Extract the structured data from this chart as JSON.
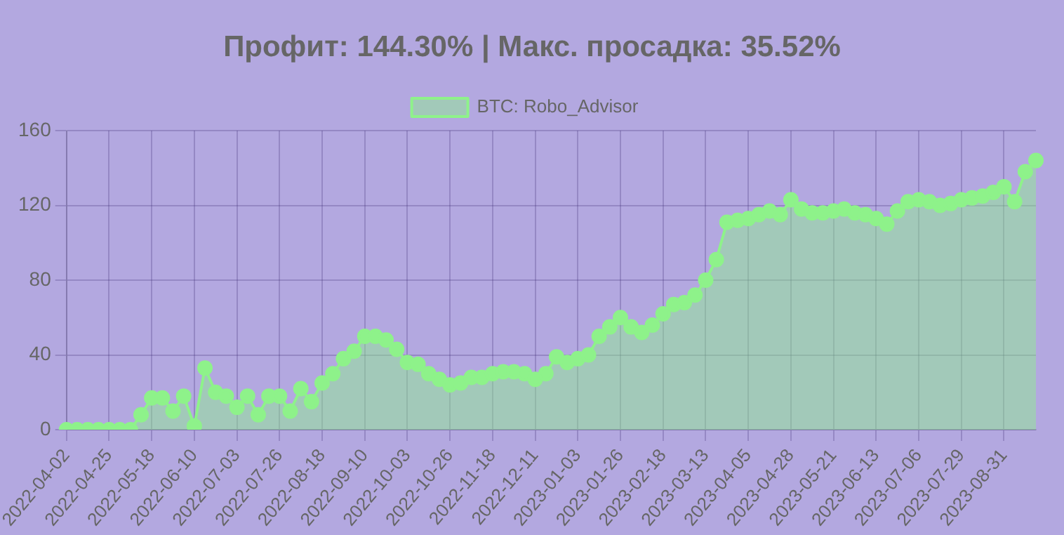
{
  "chart_data": {
    "type": "area",
    "title": "Профит: 144.30%  | Макс. просадка: 35.52%",
    "categories": [
      "2022-04-02",
      null,
      null,
      null,
      "2022-04-25",
      null,
      null,
      null,
      "2022-05-18",
      null,
      null,
      null,
      "2022-06-10",
      null,
      null,
      null,
      "2022-07-03",
      null,
      null,
      null,
      "2022-07-26",
      null,
      null,
      null,
      "2022-08-18",
      null,
      null,
      null,
      "2022-09-10",
      null,
      null,
      null,
      "2022-10-03",
      null,
      null,
      null,
      "2022-10-26",
      null,
      null,
      null,
      "2022-11-18",
      null,
      null,
      null,
      "2022-12-11",
      null,
      null,
      null,
      "2023-01-03",
      null,
      null,
      null,
      "2023-01-26",
      null,
      null,
      null,
      "2023-02-18",
      null,
      null,
      null,
      "2023-03-13",
      null,
      null,
      null,
      "2023-04-05",
      null,
      null,
      null,
      "2023-04-28",
      null,
      null,
      null,
      "2023-05-21",
      null,
      null,
      null,
      "2023-06-13",
      null,
      null,
      null,
      "2023-07-06",
      null,
      null,
      null,
      "2023-07-29",
      null,
      null,
      null,
      "2023-08-31",
      null,
      null,
      null
    ],
    "series": [
      {
        "name": "BTC: Robo_Advisor",
        "color": "#8ef28a",
        "values": [
          0,
          0,
          0,
          0,
          0,
          0,
          0,
          8,
          17,
          17,
          10,
          18,
          2,
          33,
          20,
          18,
          12,
          18,
          8,
          18,
          18,
          10,
          22,
          15,
          25,
          30,
          38,
          42,
          50,
          50,
          48,
          43,
          36,
          35,
          30,
          27,
          24,
          25,
          28,
          28,
          30,
          31,
          31,
          30,
          27,
          30,
          39,
          36,
          38,
          40,
          50,
          55,
          60,
          55,
          52,
          56,
          62,
          67,
          68,
          72,
          80,
          91,
          111,
          112,
          113,
          115,
          117,
          115,
          123,
          118,
          116,
          116,
          117,
          118,
          116,
          115,
          113,
          110,
          117,
          122,
          123,
          122,
          120,
          121,
          123,
          124,
          125,
          127,
          130,
          122,
          138,
          144
        ]
      }
    ],
    "ylim": [
      0,
      160
    ],
    "yticks": [
      0,
      40,
      80,
      120,
      160
    ],
    "grid": true,
    "legend": "top",
    "marker": "circle"
  }
}
